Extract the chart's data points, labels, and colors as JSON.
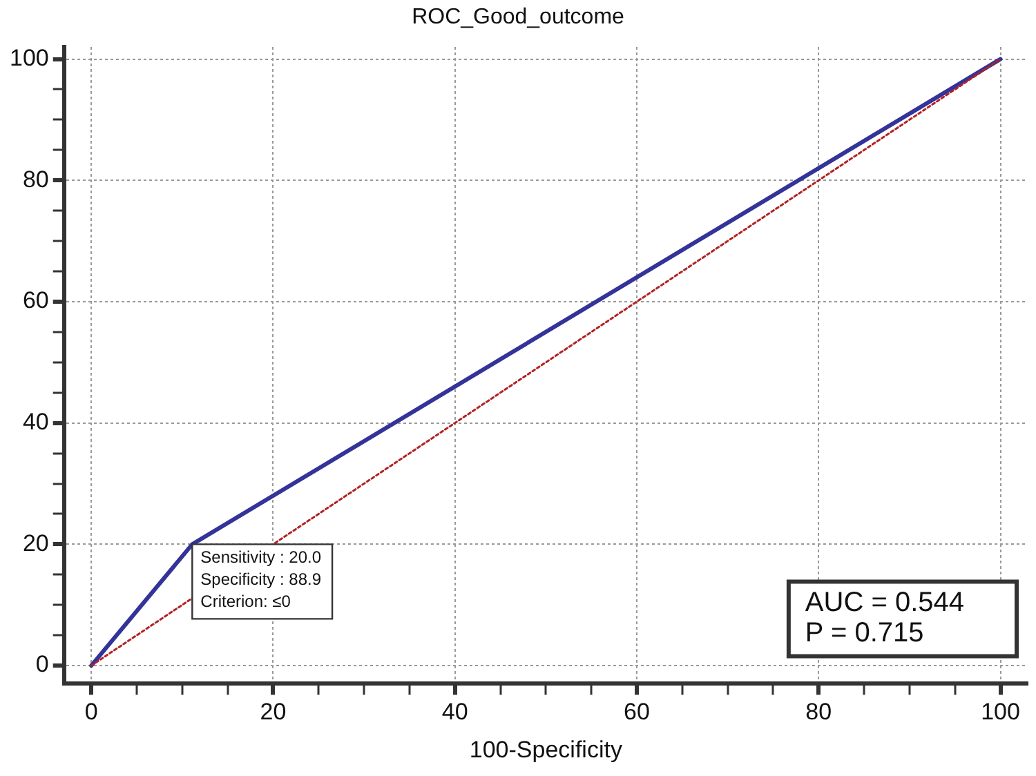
{
  "chart_data": {
    "type": "line",
    "title": "ROC_Good_outcome",
    "xlabel": "100-Specificity",
    "xlim": [
      -3,
      103
    ],
    "ylim": [
      -3,
      102
    ],
    "xticks": [
      0,
      {
        "value": 5,
        "label": null
      },
      {
        "value": 10,
        "label": null
      },
      {
        "value": 15,
        "label": null
      },
      20,
      {
        "value": 25,
        "label": null
      },
      {
        "value": 30,
        "label": null
      },
      {
        "value": 35,
        "label": null
      },
      40,
      {
        "value": 45,
        "label": null
      },
      {
        "value": 50,
        "label": null
      },
      {
        "value": 55,
        "label": null
      },
      60,
      {
        "value": 65,
        "label": null
      },
      {
        "value": 70,
        "label": null
      },
      {
        "value": 75,
        "label": null
      },
      80,
      {
        "value": 85,
        "label": null
      },
      {
        "value": 90,
        "label": null
      },
      {
        "value": 95,
        "label": null
      },
      100
    ],
    "yticks": [
      0,
      {
        "value": 5,
        "label": null
      },
      {
        "value": 10,
        "label": null
      },
      {
        "value": 15,
        "label": null
      },
      20,
      {
        "value": 25,
        "label": null
      },
      {
        "value": 30,
        "label": null
      },
      {
        "value": 35,
        "label": null
      },
      40,
      {
        "value": 45,
        "label": null
      },
      {
        "value": 50,
        "label": null
      },
      {
        "value": 55,
        "label": null
      },
      60,
      {
        "value": 65,
        "label": null
      },
      {
        "value": 70,
        "label": null
      },
      {
        "value": 75,
        "label": null
      },
      80,
      {
        "value": 85,
        "label": null
      },
      {
        "value": 90,
        "label": null
      },
      {
        "value": 95,
        "label": null
      },
      100
    ],
    "grid": true,
    "legend": false,
    "marker": "none",
    "series": [
      {
        "color": "#b22222",
        "line_style": "dotted",
        "x": [
          0,
          100
        ],
        "values": [
          0,
          100
        ]
      },
      {
        "color": "#333399",
        "line_style": "solid",
        "x": [
          0,
          11.1,
          100
        ],
        "values": [
          0,
          20,
          100
        ]
      }
    ],
    "annotations": [
      {
        "text": "Sensitivity : 20.0\nSpecificity : 88.9\nCriterion: ≤0",
        "x": 11.1,
        "y": 20
      },
      "AUC = 0.544",
      "P = 0.715"
    ]
  }
}
